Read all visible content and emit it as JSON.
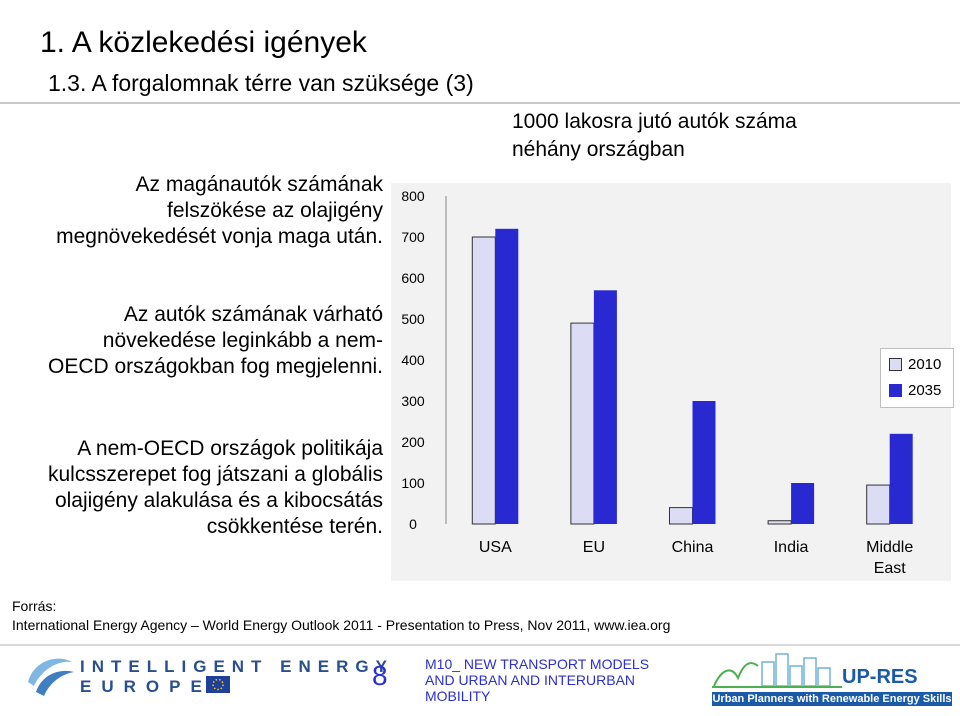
{
  "slide": {
    "title": "1. A közlekedési igények",
    "subtitle": "1.3. A forgalomnak térre van szüksége (3)",
    "paragraphs": [
      "Az magánautók számának felszökése az olajigény megnövekedését vonja maga után.",
      "Az autók számának várható növekedése leginkább a nem-OECD országokban fog megjelenni.",
      "A nem-OECD országok politikája kulcsszerepet fog játszani a globális olajigény alakulása és a kibocsátás csökkentése terén."
    ],
    "source_label": "Forrás:",
    "source_text": "International Energy Agency – World Energy Outlook 2011 - Presentation to Press,  Nov 2011, www.iea.org"
  },
  "chart_data": {
    "type": "bar",
    "title": "1000 lakosra jutó autók száma néhány országban",
    "categories": [
      "USA",
      "EU",
      "China",
      "India",
      "Middle East"
    ],
    "series": [
      {
        "name": "2010",
        "values": [
          700,
          490,
          40,
          8,
          95
        ],
        "color": "#dcdcf4"
      },
      {
        "name": "2035",
        "values": [
          720,
          570,
          300,
          100,
          220
        ],
        "color": "#2929d1"
      }
    ],
    "yticks": [
      "0",
      "100",
      "200",
      "300",
      "400",
      "500",
      "600",
      "700",
      "800"
    ],
    "ylim": [
      0,
      800
    ],
    "xlabel": "",
    "ylabel": "",
    "grid": false,
    "legend": "right"
  },
  "footer": {
    "ie_line1": "INTELLIGENT ENERGY",
    "ie_line2": "EUROPE",
    "page_number": "8",
    "module_title": "M10_ NEW TRANSPORT MODELS AND URBAN AND INTERURBAN MOBILITY",
    "brand_name": "UP-RES",
    "brand_tagline": "Urban Planners with Renewable Energy Skills"
  }
}
